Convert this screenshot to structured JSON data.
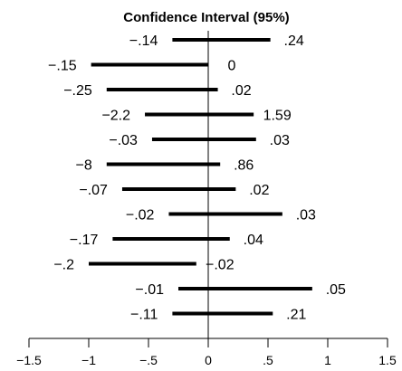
{
  "chart_data": {
    "type": "interval",
    "title": "Confidence Interval (95%)",
    "xlim": [
      -1.5,
      1.5
    ],
    "x_ticks": [
      -1.5,
      -1,
      -0.5,
      0,
      0.5,
      1,
      1.5
    ],
    "x_tick_labels": [
      "−1.5",
      "−1",
      "−.5",
      "0",
      ".5",
      "1",
      "1.5"
    ],
    "reference_line": 0,
    "intervals": [
      {
        "low": -0.3,
        "high": 0.52,
        "low_label": "−.14",
        "high_label": ".24"
      },
      {
        "low": -0.98,
        "high": 0.0,
        "low_label": "−.15",
        "high_label": "0"
      },
      {
        "low": -0.85,
        "high": 0.08,
        "low_label": "−.25",
        "high_label": ".02"
      },
      {
        "low": -0.53,
        "high": 0.38,
        "low_label": "−2.2",
        "high_label": "1.59"
      },
      {
        "low": -0.47,
        "high": 0.4,
        "low_label": "−.03",
        "high_label": ".03"
      },
      {
        "low": -0.85,
        "high": 0.1,
        "low_label": "−8",
        "high_label": ".86"
      },
      {
        "low": -0.72,
        "high": 0.23,
        "low_label": "−.07",
        "high_label": ".02"
      },
      {
        "low": -0.33,
        "high": 0.62,
        "low_label": "−.02",
        "high_label": ".03"
      },
      {
        "low": -0.8,
        "high": 0.18,
        "low_label": "−.17",
        "high_label": ".04"
      },
      {
        "low": -1.0,
        "high": -0.1,
        "low_label": "−.2",
        "high_label": "−.02"
      },
      {
        "low": -0.25,
        "high": 0.87,
        "low_label": "−.01",
        "high_label": ".05"
      },
      {
        "low": -0.3,
        "high": 0.54,
        "low_label": "−.11",
        "high_label": ".21"
      }
    ],
    "colors": {
      "bar": "#000000",
      "axis": "#000000"
    }
  }
}
